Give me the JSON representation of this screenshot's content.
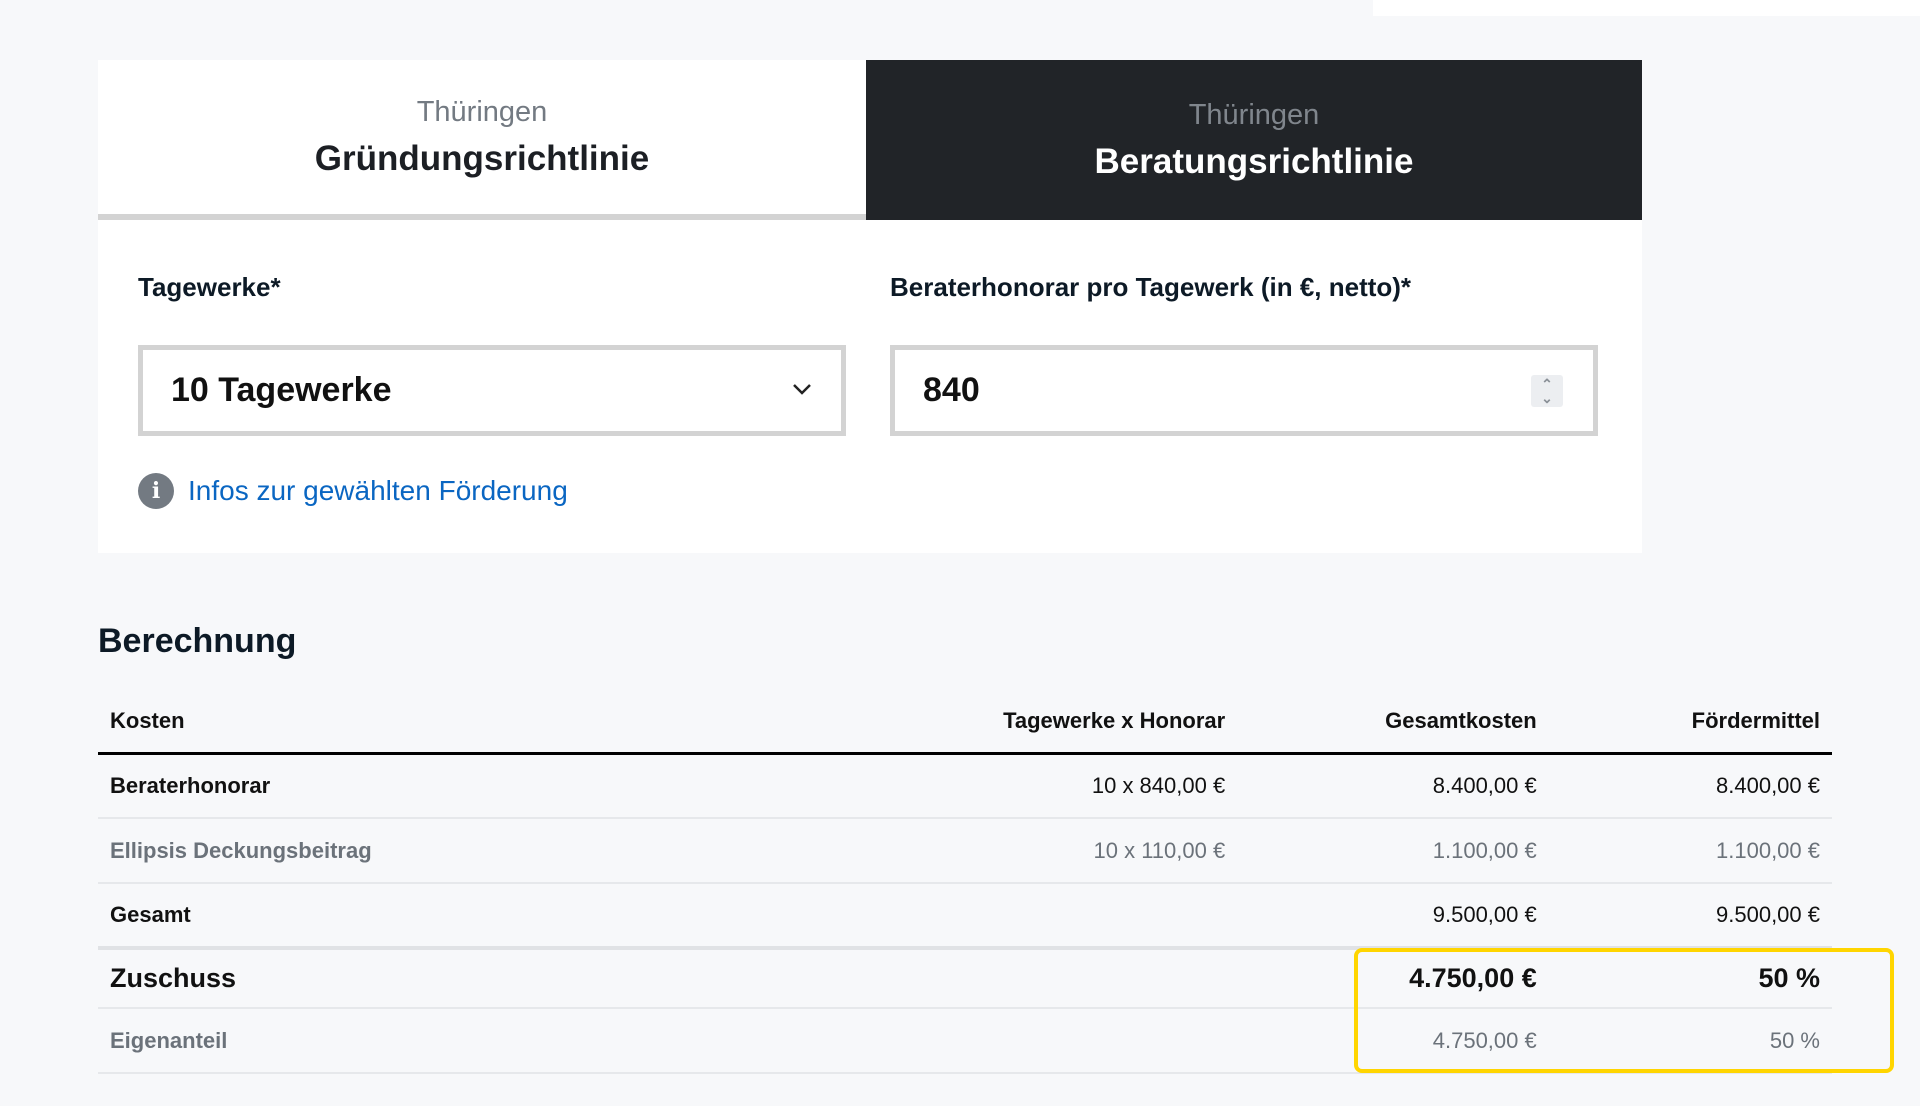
{
  "tabs": [
    {
      "subtitle": "Thüringen",
      "title": "Gründungsrichtlinie",
      "active": false
    },
    {
      "subtitle": "Thüringen",
      "title": "Beratungsrichtlinie",
      "active": true
    }
  ],
  "form": {
    "tagewerke_label": "Tagewerke*",
    "tagewerke_value": "10 Tagewerke",
    "honorar_label": "Beraterhonorar pro Tagewerk (in €, netto)*",
    "honorar_value": "840",
    "info_link": "Infos zur gewählten Förderung"
  },
  "calc": {
    "heading": "Berechnung",
    "columns": [
      "Kosten",
      "Tagewerke x Honorar",
      "Gesamtkosten",
      "Fördermittel"
    ],
    "rows": [
      [
        "Beraterhonorar",
        "10 x 840,00 €",
        "8.400,00 €",
        "8.400,00 €"
      ],
      [
        "Ellipsis Deckungsbeitrag",
        "10 x 110,00 €",
        "1.100,00 €",
        "1.100,00 €"
      ],
      [
        "Gesamt",
        "",
        "9.500,00 €",
        "9.500,00 €"
      ],
      [
        "Zuschuss",
        "",
        "4.750,00 €",
        "50 %"
      ],
      [
        "Eigenanteil",
        "",
        "4.750,00 €",
        "50 %"
      ]
    ]
  },
  "colors": {
    "active_tab": "#212428",
    "link": "#0a66c2",
    "highlight": "#ffd500"
  }
}
